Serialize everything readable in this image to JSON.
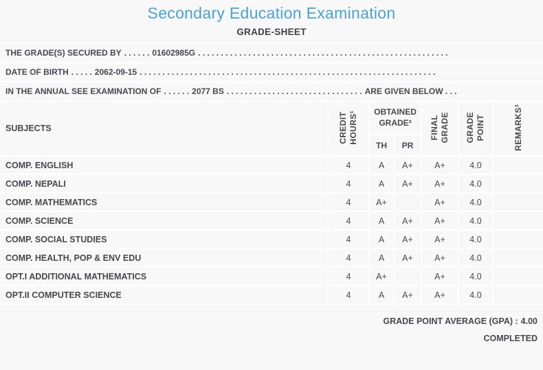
{
  "colors": {
    "background": "#f8f8f8",
    "divider": "#ffffff",
    "title_accent": "#48a2da",
    "text": "#47474f"
  },
  "header": {
    "title": "Secondary Education Examination",
    "subtitle": "GRADE-SHEET"
  },
  "info_lines": [
    {
      "label": "THE GRADE(S) SECURED BY",
      "leader1": ". . . . . .",
      "value": "01602985G",
      "leader2": ". . . . . . . . . . . . . . . . . . . . . . . . . . . . . . . . . . . . . . . . . . . . . . . . . . . . . . .",
      "suffix": ""
    },
    {
      "label": "DATE OF BIRTH",
      "leader1": ". . . . .",
      "value": "2062-09-15",
      "leader2": ". . . . . . . . . . . . . . . . . . . . . . . . . . . . . . . . . . . . . . . . . . . . . . . . . . . . . . . . . . . . . . . . .",
      "suffix": ""
    },
    {
      "label": "IN THE ANNUAL SEE EXAMINATION OF",
      "leader1": ". . . . . .",
      "value": "2077 BS",
      "leader2": ". . . . . . . . . . . . . . . . . . . . . . . . . . . . . .",
      "suffix": "ARE GIVEN BELOW . . ."
    }
  ],
  "table": {
    "headers": {
      "subjects": "SUBJECTS",
      "credit_hours": "CREDIT\nHOURS¹",
      "obtained_grade": "OBTAINED\nGRADE²",
      "th": "TH",
      "pr": "PR",
      "final_grade": "FINAL\nGRADE",
      "grade_point": "GRADE\nPOINT",
      "remarks": "REMARKS³"
    },
    "rows": [
      {
        "subject": "COMP. ENGLISH",
        "credit_hours": "4",
        "th_grade": "A",
        "pr_grade": "A+",
        "final_grade": "A+",
        "grade_point": "4.0",
        "remarks": ""
      },
      {
        "subject": "COMP. NEPALI",
        "credit_hours": "4",
        "th_grade": "A",
        "pr_grade": "A+",
        "final_grade": "A+",
        "grade_point": "4.0",
        "remarks": ""
      },
      {
        "subject": "COMP. MATHEMATICS",
        "credit_hours": "4",
        "th_grade": "A+",
        "pr_grade": "",
        "final_grade": "A+",
        "grade_point": "4.0",
        "remarks": ""
      },
      {
        "subject": "COMP. SCIENCE",
        "credit_hours": "4",
        "th_grade": "A",
        "pr_grade": "A+",
        "final_grade": "A+",
        "grade_point": "4.0",
        "remarks": ""
      },
      {
        "subject": "COMP. SOCIAL STUDIES",
        "credit_hours": "4",
        "th_grade": "A",
        "pr_grade": "A+",
        "final_grade": "A+",
        "grade_point": "4.0",
        "remarks": ""
      },
      {
        "subject": "COMP. HEALTH, POP & ENV EDU",
        "credit_hours": "4",
        "th_grade": "A",
        "pr_grade": "A+",
        "final_grade": "A+",
        "grade_point": "4.0",
        "remarks": ""
      },
      {
        "subject": "OPT.I ADDITIONAL MATHEMATICS",
        "credit_hours": "4",
        "th_grade": "A+",
        "pr_grade": "",
        "final_grade": "A+",
        "grade_point": "4.0",
        "remarks": ""
      },
      {
        "subject": "OPT.II COMPUTER SCIENCE",
        "credit_hours": "4",
        "th_grade": "A",
        "pr_grade": "A+",
        "final_grade": "A+",
        "grade_point": "4.0",
        "remarks": ""
      }
    ]
  },
  "footer": {
    "gpa_label": "GRADE POINT AVERAGE (GPA) :",
    "gpa_value": "4.00",
    "status": "COMPLETED"
  }
}
